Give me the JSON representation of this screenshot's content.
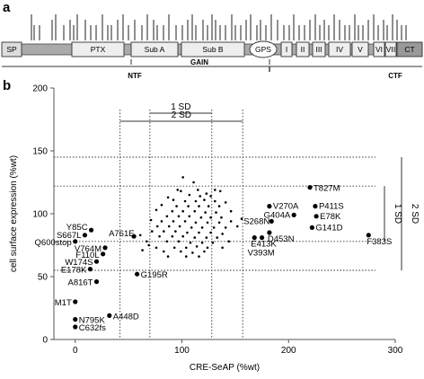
{
  "panel_a": {
    "label": "a",
    "domains": [
      "SP",
      "PTX",
      "Sub A",
      "Sub B",
      "GPS",
      "I",
      "II",
      "III",
      "IV",
      "V",
      "VI",
      "VII",
      "CT"
    ],
    "regions": [
      "NTF",
      "GAIN",
      "CTF"
    ]
  },
  "panel_b": {
    "label": "b"
  },
  "chart_data": {
    "type": "scatter",
    "xlabel": "CRE-SeAP (%wt)",
    "ylabel": "cell surface expression (%wt)",
    "xlim": [
      -20,
      300
    ],
    "ylim": [
      0,
      200
    ],
    "xticks": [
      0,
      100,
      200,
      300
    ],
    "yticks": [
      0,
      50,
      100,
      150,
      200
    ],
    "reference_lines": {
      "vertical": [
        42,
        70,
        128,
        157
      ],
      "horizontal": [
        55,
        78,
        122,
        145
      ]
    },
    "sd_brackets": {
      "x_2sd": "2 SD",
      "x_1sd": "1 SD",
      "y_1sd": "1 SD",
      "y_2sd": "2 SD"
    },
    "labeled_points": [
      {
        "label": "T827M",
        "x": 220,
        "y": 121
      },
      {
        "label": "V270A",
        "x": 182,
        "y": 106
      },
      {
        "label": "P411S",
        "x": 225,
        "y": 106
      },
      {
        "label": "E78K",
        "x": 226,
        "y": 98
      },
      {
        "label": "G404A",
        "x": 205,
        "y": 99
      },
      {
        "label": "G141D",
        "x": 222,
        "y": 89
      },
      {
        "label": "S268N",
        "x": 184,
        "y": 94
      },
      {
        "label": "D453N",
        "x": 182,
        "y": 85
      },
      {
        "label": "F383S",
        "x": 275,
        "y": 83
      },
      {
        "label": "E413K",
        "x": 168,
        "y": 81
      },
      {
        "label": "V393M",
        "x": 175,
        "y": 81
      },
      {
        "label": "Y85C",
        "x": 15,
        "y": 87
      },
      {
        "label": "S667L",
        "x": 9,
        "y": 83
      },
      {
        "label": "A761E",
        "x": 55,
        "y": 82
      },
      {
        "label": "Q600stop",
        "x": 0,
        "y": 78
      },
      {
        "label": "V764M",
        "x": 28,
        "y": 73
      },
      {
        "label": "F110L",
        "x": 26,
        "y": 68
      },
      {
        "label": "W174S",
        "x": 20,
        "y": 62
      },
      {
        "label": "E178K",
        "x": 14,
        "y": 56
      },
      {
        "label": "A816T",
        "x": 20,
        "y": 46
      },
      {
        "label": "G195R",
        "x": 58,
        "y": 52
      },
      {
        "label": "M1T",
        "x": 0,
        "y": 30
      },
      {
        "label": "A448D",
        "x": 32,
        "y": 19
      },
      {
        "label": "N795K",
        "x": 0,
        "y": 16
      },
      {
        "label": "C632fs",
        "x": 0,
        "y": 10
      }
    ],
    "unlabeled_points": [
      [
        101,
        129
      ],
      [
        111,
        125
      ],
      [
        96,
        119
      ],
      [
        115,
        119
      ],
      [
        123,
        116
      ],
      [
        131,
        119
      ],
      [
        136,
        118
      ],
      [
        99,
        118
      ],
      [
        107,
        115
      ],
      [
        117,
        114
      ],
      [
        127,
        114
      ],
      [
        87,
        113
      ],
      [
        92,
        111
      ],
      [
        103,
        110
      ],
      [
        113,
        110
      ],
      [
        121,
        111
      ],
      [
        131,
        110
      ],
      [
        141,
        109
      ],
      [
        81,
        107
      ],
      [
        95,
        106
      ],
      [
        106,
        106
      ],
      [
        116,
        106
      ],
      [
        125,
        106
      ],
      [
        135,
        106
      ],
      [
        76,
        103
      ],
      [
        91,
        102
      ],
      [
        101,
        102
      ],
      [
        112,
        102
      ],
      [
        122,
        101
      ],
      [
        132,
        101
      ],
      [
        146,
        102
      ],
      [
        86,
        98
      ],
      [
        97,
        98
      ],
      [
        107,
        98
      ],
      [
        118,
        97
      ],
      [
        127,
        97
      ],
      [
        137,
        97
      ],
      [
        71,
        95
      ],
      [
        81,
        94
      ],
      [
        92,
        94
      ],
      [
        103,
        94
      ],
      [
        113,
        93
      ],
      [
        124,
        93
      ],
      [
        135,
        93
      ],
      [
        146,
        94
      ],
      [
        77,
        90
      ],
      [
        88,
        90
      ],
      [
        98,
        90
      ],
      [
        109,
        89
      ],
      [
        119,
        89
      ],
      [
        130,
        89
      ],
      [
        141,
        89
      ],
      [
        152,
        90
      ],
      [
        72,
        86
      ],
      [
        83,
        86
      ],
      [
        94,
        86
      ],
      [
        105,
        85
      ],
      [
        116,
        85
      ],
      [
        127,
        85
      ],
      [
        138,
        84
      ],
      [
        61,
        83
      ],
      [
        79,
        82
      ],
      [
        91,
        82
      ],
      [
        101,
        82
      ],
      [
        112,
        81
      ],
      [
        123,
        81
      ],
      [
        133,
        81
      ],
      [
        67,
        78
      ],
      [
        86,
        78
      ],
      [
        97,
        78
      ],
      [
        108,
        77
      ],
      [
        119,
        77
      ],
      [
        129,
        77
      ],
      [
        144,
        78
      ],
      [
        76,
        73
      ],
      [
        93,
        73
      ],
      [
        104,
        73
      ],
      [
        114,
        74
      ],
      [
        124,
        73
      ],
      [
        138,
        73
      ],
      [
        63,
        71
      ],
      [
        83,
        70
      ],
      [
        99,
        70
      ],
      [
        110,
        69
      ],
      [
        121,
        70
      ],
      [
        87,
        66
      ],
      [
        104,
        66
      ],
      [
        116,
        66
      ],
      [
        69,
        75
      ],
      [
        156,
        96
      ]
    ]
  }
}
